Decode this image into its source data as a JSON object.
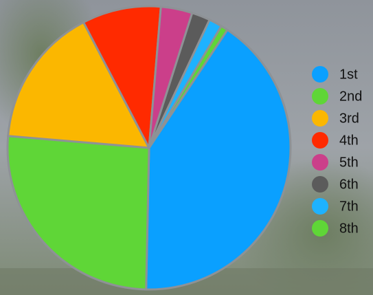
{
  "chart_data": {
    "type": "pie",
    "categories": [
      "1st",
      "2nd",
      "3rd",
      "4th",
      "5th",
      "6th",
      "7th",
      "8th"
    ],
    "values": [
      41,
      26,
      16,
      9,
      3.6,
      2.1,
      1.5,
      0.8
    ],
    "colors": [
      "#0aa0ff",
      "#5fd637",
      "#fbb700",
      "#ff2a00",
      "#cb3f8a",
      "#5b5b5b",
      "#1eb2ff",
      "#5fd637"
    ],
    "legend": "right"
  }
}
